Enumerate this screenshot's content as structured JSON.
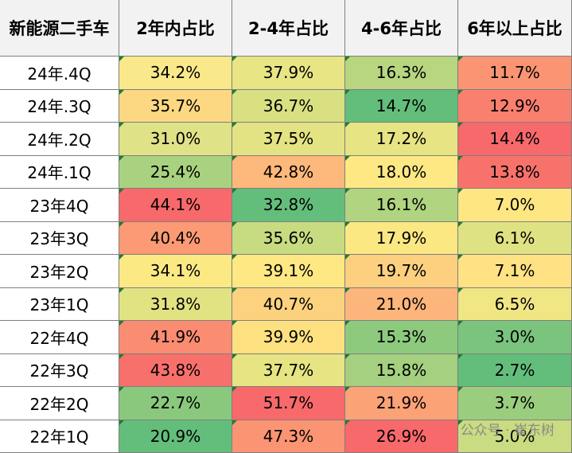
{
  "table": {
    "header": [
      "新能源二手车",
      "2年内占比",
      "2-4年占比",
      "4-6年占比",
      "6年以上占比"
    ],
    "rows": [
      [
        "24年.4Q",
        "34.2%",
        "37.9%",
        "16.3%",
        "11.7%"
      ],
      [
        "24年.3Q",
        "35.7%",
        "36.7%",
        "14.7%",
        "12.9%"
      ],
      [
        "24年.2Q",
        "31.0%",
        "37.5%",
        "17.2%",
        "14.4%"
      ],
      [
        "24年.1Q",
        "25.4%",
        "42.8%",
        "18.0%",
        "13.8%"
      ],
      [
        "23年4Q",
        "44.1%",
        "32.8%",
        "16.1%",
        "7.0%"
      ],
      [
        "23年3Q",
        "40.4%",
        "35.6%",
        "17.9%",
        "6.1%"
      ],
      [
        "23年2Q",
        "34.1%",
        "39.1%",
        "19.7%",
        "7.1%"
      ],
      [
        "23年1Q",
        "31.8%",
        "40.7%",
        "21.0%",
        "6.5%"
      ],
      [
        "22年4Q",
        "41.9%",
        "39.9%",
        "15.3%",
        "3.0%"
      ],
      [
        "22年3Q",
        "43.8%",
        "37.7%",
        "15.8%",
        "2.7%"
      ],
      [
        "22年2Q",
        "22.7%",
        "51.7%",
        "21.9%",
        "3.7%"
      ],
      [
        "22年1Q",
        "20.9%",
        "47.3%",
        "26.9%",
        "5.0%"
      ]
    ],
    "cell_colors": [
      [
        "#f9e98a",
        "#e8e584",
        "#b8d580",
        "#fa9473"
      ],
      [
        "#fcd882",
        "#d8e082",
        "#63be7b",
        "#f97f6f"
      ],
      [
        "#dfe286",
        "#e3e383",
        "#e6e483",
        "#f8696b"
      ],
      [
        "#a8d27f",
        "#fdb87b",
        "#fee883",
        "#f8726c"
      ],
      [
        "#f8696b",
        "#63be7b",
        "#b0d47f",
        "#fee683"
      ],
      [
        "#fb9a74",
        "#c7db81",
        "#fbe883",
        "#dfe283"
      ],
      [
        "#fbe984",
        "#fee883",
        "#fdd07f",
        "#fee283"
      ],
      [
        "#e1e383",
        "#fdd27f",
        "#fcb57a",
        "#f0e684"
      ],
      [
        "#fa8c71",
        "#fde080",
        "#8dca7e",
        "#7ac47d"
      ],
      [
        "#f8706c",
        "#e6e483",
        "#a4d07f",
        "#63be7b"
      ],
      [
        "#8ac97d",
        "#f8696b",
        "#fca277",
        "#9bcd7e"
      ],
      [
        "#63be7b",
        "#fa9473",
        "#f8696b",
        "#c9dc81"
      ]
    ]
  },
  "watermark": "公众号 · 崔东树"
}
